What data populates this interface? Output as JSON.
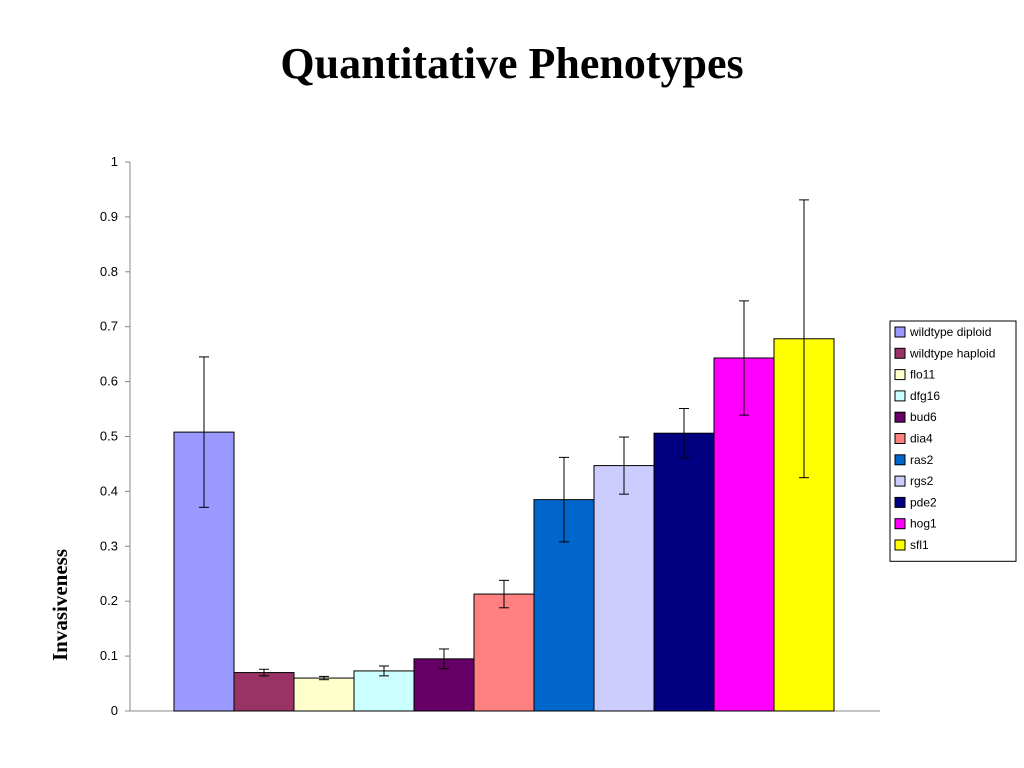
{
  "chart_data": {
    "type": "bar",
    "title": "Quantitative Phenotypes",
    "ylabel": "Invasiveness",
    "xlabel": "",
    "ylim": [
      0,
      1
    ],
    "yticks": [
      "0",
      "0.1",
      "0.2",
      "0.3",
      "0.4",
      "0.5",
      "0.6",
      "0.7",
      "0.8",
      "0.9",
      "1"
    ],
    "legend_position": "right",
    "grid": false,
    "series": [
      {
        "name": "wildtype diploid",
        "value": 0.508,
        "error": 0.137,
        "color": "#9999ff"
      },
      {
        "name": "wildtype haploid",
        "value": 0.07,
        "error": 0.006,
        "color": "#993366"
      },
      {
        "name": "flo11",
        "value": 0.06,
        "error": 0.003,
        "color": "#ffffcc"
      },
      {
        "name": "dfg16",
        "value": 0.073,
        "error": 0.009,
        "color": "#ccffff"
      },
      {
        "name": "bud6",
        "value": 0.095,
        "error": 0.018,
        "color": "#660066"
      },
      {
        "name": "dia4",
        "value": 0.213,
        "error": 0.025,
        "color": "#ff8080"
      },
      {
        "name": "ras2",
        "value": 0.385,
        "error": 0.077,
        "color": "#0066cc"
      },
      {
        "name": "rgs2",
        "value": 0.447,
        "error": 0.052,
        "color": "#ccccff"
      },
      {
        "name": "pde2",
        "value": 0.506,
        "error": 0.045,
        "color": "#000080"
      },
      {
        "name": "hog1",
        "value": 0.643,
        "error": 0.104,
        "color": "#ff00ff"
      },
      {
        "name": "sfl1",
        "value": 0.678,
        "error": 0.253,
        "color": "#ffff00"
      }
    ]
  }
}
